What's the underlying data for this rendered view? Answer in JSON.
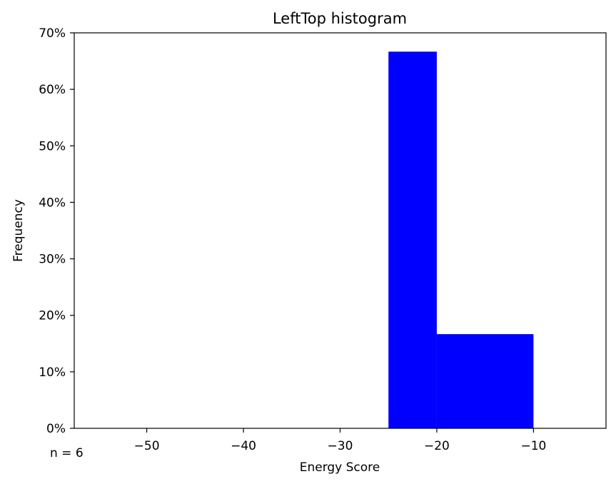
{
  "chart_data": {
    "type": "bar",
    "title": "LeftTop histogram",
    "xlabel": "Energy Score",
    "ylabel": "Frequency",
    "annotation": "n = 6",
    "xlim": [
      -57.5,
      -2.5
    ],
    "ylim": [
      0,
      0.7
    ],
    "x_ticks": [
      -50,
      -40,
      -30,
      -20,
      -10
    ],
    "x_tick_labels": [
      "−50",
      "−40",
      "−30",
      "−20",
      "−10"
    ],
    "y_ticks": [
      0,
      0.1,
      0.2,
      0.3,
      0.4,
      0.5,
      0.6,
      0.7
    ],
    "y_tick_labels": [
      "0%",
      "10%",
      "20%",
      "30%",
      "40%",
      "50%",
      "60%",
      "70%"
    ],
    "bins": [
      {
        "x0": -25,
        "x1": -20,
        "value": 0.6667
      },
      {
        "x0": -20,
        "x1": -10,
        "value": 0.1667
      }
    ],
    "bar_color": "#0000ff",
    "grid": false
  }
}
